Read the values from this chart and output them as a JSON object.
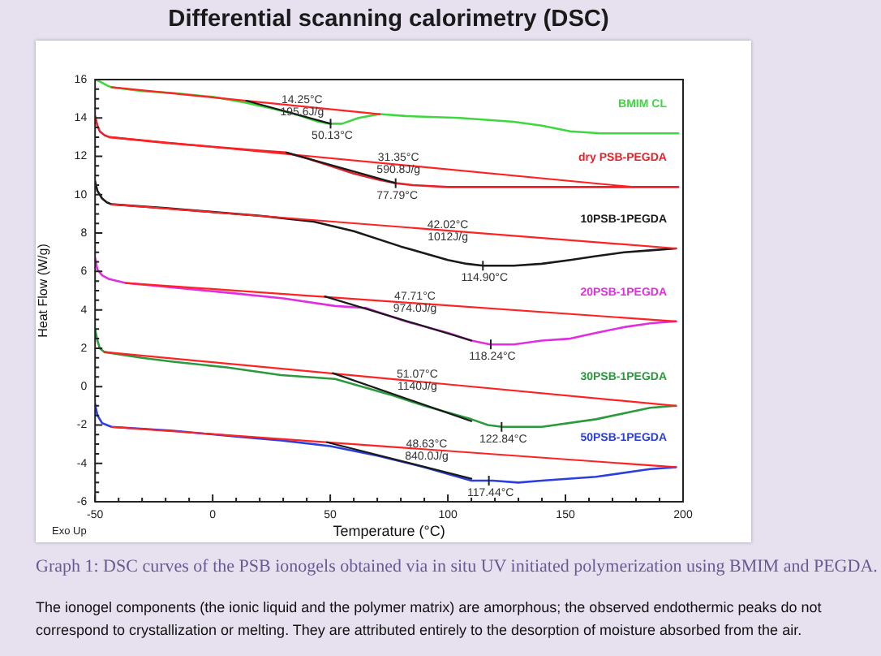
{
  "chart_data": {
    "type": "line",
    "title": "Differential scanning calorimetry (DSC)",
    "xlabel": "Temperature (°C)",
    "ylabel": "Heat Flow (W/g)",
    "xlim": [
      -50,
      200
    ],
    "ylim": [
      -6,
      16
    ],
    "xticks": [
      -50,
      {
        "value": -40,
        "label": null
      },
      {
        "value": -30,
        "label": null
      },
      {
        "value": -20,
        "label": null
      },
      {
        "value": -10,
        "label": null
      },
      0,
      {
        "value": 10,
        "label": null
      },
      {
        "value": 20,
        "label": null
      },
      {
        "value": 30,
        "label": null
      },
      {
        "value": 40,
        "label": null
      },
      50,
      {
        "value": 60,
        "label": null
      },
      {
        "value": 70,
        "label": null
      },
      {
        "value": 80,
        "label": null
      },
      {
        "value": 90,
        "label": null
      },
      100,
      {
        "value": 110,
        "label": null
      },
      {
        "value": 120,
        "label": null
      },
      {
        "value": 130,
        "label": null
      },
      {
        "value": 140,
        "label": null
      },
      150,
      {
        "value": 160,
        "label": null
      },
      {
        "value": 170,
        "label": null
      },
      {
        "value": 180,
        "label": null
      },
      {
        "value": 190,
        "label": null
      },
      200
    ],
    "yticks": [
      -6,
      {
        "value": -5.5,
        "label": null
      },
      {
        "value": -5,
        "label": null
      },
      {
        "value": -4.5,
        "label": null
      },
      -4,
      {
        "value": -3.5,
        "label": null
      },
      {
        "value": -3,
        "label": null
      },
      {
        "value": -2.5,
        "label": null
      },
      -2,
      {
        "value": -1.5,
        "label": null
      },
      {
        "value": -1,
        "label": null
      },
      {
        "value": -0.5,
        "label": null
      },
      0,
      {
        "value": 0.5,
        "label": null
      },
      {
        "value": 1,
        "label": null
      },
      {
        "value": 1.5,
        "label": null
      },
      2,
      {
        "value": 2.5,
        "label": null
      },
      {
        "value": 3,
        "label": null
      },
      {
        "value": 3.5,
        "label": null
      },
      4,
      {
        "value": 4.5,
        "label": null
      },
      {
        "value": 5,
        "label": null
      },
      {
        "value": 5.5,
        "label": null
      },
      6,
      {
        "value": 6.5,
        "label": null
      },
      {
        "value": 7,
        "label": null
      },
      {
        "value": 7.5,
        "label": null
      },
      8,
      {
        "value": 8.5,
        "label": null
      },
      {
        "value": 9,
        "label": null
      },
      {
        "value": 9.5,
        "label": null
      },
      10,
      {
        "value": 10.5,
        "label": null
      },
      {
        "value": 11,
        "label": null
      },
      {
        "value": 11.5,
        "label": null
      },
      12,
      {
        "value": 12.5,
        "label": null
      },
      {
        "value": 13,
        "label": null
      },
      {
        "value": 13.5,
        "label": null
      },
      14,
      {
        "value": 14.5,
        "label": null
      },
      {
        "value": 15,
        "label": null
      },
      {
        "value": 15.5,
        "label": null
      },
      16
    ],
    "grid": false,
    "marker": "none",
    "series": [
      {
        "name": "BMIM CL",
        "color": "#3ed83e",
        "x": [
          -50,
          -48,
          -45,
          -43,
          -30,
          -17,
          0,
          14,
          25,
          35,
          45,
          50,
          55,
          62,
          71,
          82,
          105,
          128,
          140,
          152,
          165,
          180,
          198
        ],
        "values": [
          16.0,
          15.9,
          15.7,
          15.6,
          15.4,
          15.3,
          15.1,
          14.8,
          14.5,
          14.2,
          13.8,
          13.7,
          13.7,
          14.0,
          14.2,
          14.1,
          14.0,
          13.8,
          13.6,
          13.3,
          13.2,
          13.2,
          13.2
        ]
      },
      {
        "name": "dry PSB-PEGDA",
        "color": "#e8202a",
        "x": [
          -50,
          -49,
          -48,
          -46,
          -44,
          -20,
          0,
          20,
          31,
          40,
          50,
          60,
          70,
          78,
          85,
          100,
          130,
          160,
          179,
          198
        ],
        "values": [
          14.1,
          13.6,
          13.3,
          13.1,
          13.0,
          12.7,
          12.5,
          12.3,
          12.2,
          11.9,
          11.5,
          11.1,
          10.8,
          10.6,
          10.5,
          10.4,
          10.4,
          10.4,
          10.4,
          10.4
        ]
      },
      {
        "name": "10PSB-1PEGDA",
        "color": "#1a1a1a",
        "x": [
          -50,
          -49,
          -47,
          -45,
          -43,
          -20,
          0,
          20,
          43,
          60,
          80,
          100,
          108,
          115,
          128,
          140,
          152,
          163,
          175,
          186,
          197
        ],
        "values": [
          10.7,
          10.2,
          9.8,
          9.6,
          9.5,
          9.3,
          9.1,
          8.9,
          8.6,
          8.1,
          7.3,
          6.6,
          6.4,
          6.3,
          6.3,
          6.4,
          6.6,
          6.8,
          7.0,
          7.1,
          7.2
        ]
      },
      {
        "name": "20PSB-1PEGDA",
        "color": "#e02ee0",
        "x": [
          -50,
          -49,
          -47,
          -44,
          -37,
          -20,
          6,
          30,
          52,
          65,
          82,
          100,
          110,
          118,
          128,
          140,
          152,
          163,
          175,
          186,
          197
        ],
        "values": [
          6.7,
          6.1,
          5.8,
          5.6,
          5.4,
          5.2,
          4.9,
          4.6,
          4.2,
          4.1,
          3.4,
          2.8,
          2.4,
          2.2,
          2.2,
          2.4,
          2.5,
          2.8,
          3.1,
          3.3,
          3.4
        ]
      },
      {
        "name": "30PSB-1PEGDA",
        "color": "#2a9a3c",
        "x": [
          -50,
          -49,
          -48,
          -46,
          -30,
          -17,
          6,
          29,
          52,
          75,
          90,
          110,
          117,
          123,
          140,
          163,
          186,
          197
        ],
        "values": [
          3.0,
          2.4,
          2.0,
          1.8,
          1.5,
          1.3,
          1.0,
          0.6,
          0.4,
          -0.4,
          -1.0,
          -1.7,
          -2.0,
          -2.1,
          -2.1,
          -1.7,
          -1.1,
          -1.0
        ]
      },
      {
        "name": "50PSB-1PEGDA",
        "color": "#2b3fe0",
        "x": [
          -50,
          -49,
          -47,
          -45,
          -43,
          -17,
          10,
          29,
          50,
          70,
          90,
          110,
          119,
          130,
          140,
          163,
          186,
          197
        ],
        "values": [
          -0.9,
          -1.5,
          -1.9,
          -2.0,
          -2.1,
          -2.3,
          -2.6,
          -2.8,
          -3.1,
          -3.6,
          -4.2,
          -4.9,
          -4.9,
          -5.0,
          -4.9,
          -4.7,
          -4.3,
          -4.2
        ]
      },
      {
        "color": "#ff2222",
        "x": [
          -43,
          71
        ],
        "values": [
          15.6,
          14.2
        ]
      },
      {
        "color": "#ff2222",
        "x": [
          -44,
          179
        ],
        "values": [
          13.0,
          10.4
        ]
      },
      {
        "color": "#ff2222",
        "x": [
          -43,
          197
        ],
        "values": [
          9.5,
          7.2
        ]
      },
      {
        "color": "#ff2222",
        "x": [
          -37,
          197
        ],
        "values": [
          5.4,
          3.4
        ]
      },
      {
        "color": "#ff2222",
        "x": [
          -46,
          197
        ],
        "values": [
          1.8,
          -1.0
        ]
      },
      {
        "color": "#ff2222",
        "x": [
          -43,
          197
        ],
        "values": [
          -2.1,
          -4.2
        ]
      },
      {
        "color": "#1a1a1a",
        "x": [
          14.25,
          50.13
        ],
        "values": [
          14.9,
          13.7
        ]
      },
      {
        "color": "#1a1a1a",
        "x": [
          31.35,
          77.79
        ],
        "values": [
          12.2,
          10.6
        ]
      },
      {
        "color": "#1a1a1a",
        "x": [
          47.71,
          110
        ],
        "values": [
          4.7,
          2.4
        ]
      },
      {
        "color": "#1a1a1a",
        "x": [
          51.07,
          110
        ],
        "values": [
          0.7,
          -1.8
        ]
      },
      {
        "color": "#1a1a1a",
        "x": [
          48.63,
          110
        ],
        "values": [
          -2.9,
          -4.8
        ]
      }
    ],
    "annotations": [
      {
        "text": "14.25°C\n195.6J/g",
        "x": 38,
        "y": 14.6
      },
      {
        "text": "50.13°C",
        "x": 50.13,
        "y": 13.7
      },
      {
        "text": "31.35°C\n590.8J/g",
        "x": 79,
        "y": 11.6
      },
      {
        "text": "77.79°C",
        "x": 77.79,
        "y": 10.6
      },
      {
        "text": "42.02°C\n1012J/g",
        "x": 100,
        "y": 8.1
      },
      {
        "text": "114.90°C",
        "x": 114.9,
        "y": 6.3
      },
      {
        "text": "47.71°C\n974.0J/g",
        "x": 86,
        "y": 4.4
      },
      {
        "text": "118.24°C",
        "x": 118.24,
        "y": 2.2
      },
      {
        "text": "51.07°C\n1140J/g",
        "x": 87,
        "y": 0.3
      },
      {
        "text": "122.84°C",
        "x": 122.84,
        "y": -2.1
      },
      {
        "text": "48.63°C\n840.0J/g",
        "x": 91,
        "y": -3.3
      },
      {
        "text": "117.44°C",
        "x": 117.44,
        "y": -4.9
      },
      "Exo Up",
      "Graph 1: DSC curves of the PSB ionogels obtained via in situ UV initiated polymerization using BMIM and PEGDA.",
      "The ionogel components (the ionic liquid and the polymer matrix) are amorphous; the observed endothermic peaks do not correspond to crystallization or melting. They are attributed entirely to the desorption of moisture absorbed from the air."
    ]
  }
}
